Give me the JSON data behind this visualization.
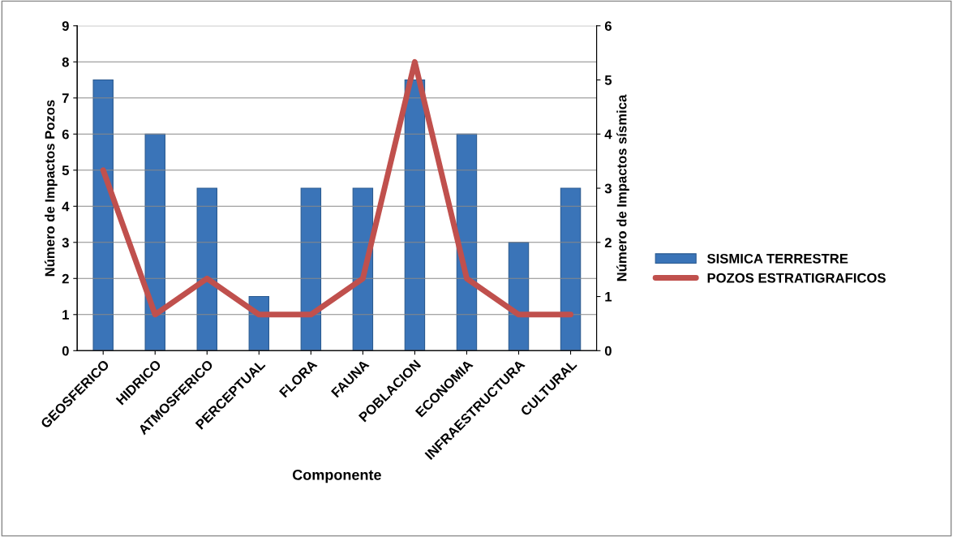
{
  "chart_data": {
    "type": "bar",
    "xlabel": "Componente",
    "ylabel": "Número de Impactos Pozos",
    "y2label": "Número de Impactos sísmica",
    "categories": [
      "GEOSFERICO",
      "HIDRICO",
      "ATMOSFERICO",
      "PERCEPTUAL",
      "FLORA",
      "FAUNA",
      "POBLACION",
      "ECONOMIA",
      "INFRAESTRUCTURA",
      "CULTURAL"
    ],
    "series": [
      {
        "name": "SISMICA TERRESTRE",
        "axis": "y2",
        "color": "#3a74b8",
        "values": [
          5,
          4,
          3,
          1,
          3,
          3,
          5,
          4,
          2,
          3
        ]
      },
      {
        "name": "POZOS ESTRATIGRAFICOS",
        "type": "line",
        "axis": "y",
        "color": "#c0504d",
        "values": [
          5,
          1,
          2,
          1,
          1,
          2,
          8,
          2,
          1,
          1
        ]
      }
    ],
    "ylim": [
      0,
      9
    ],
    "yticks": [
      0,
      1,
      2,
      3,
      4,
      5,
      6,
      7,
      8,
      9
    ],
    "y2lim": [
      0,
      6
    ],
    "y2ticks": [
      0,
      1,
      2,
      3,
      4,
      5,
      6
    ],
    "grid": "y",
    "legend": "right",
    "marker": "none",
    "line_style": "solid"
  }
}
